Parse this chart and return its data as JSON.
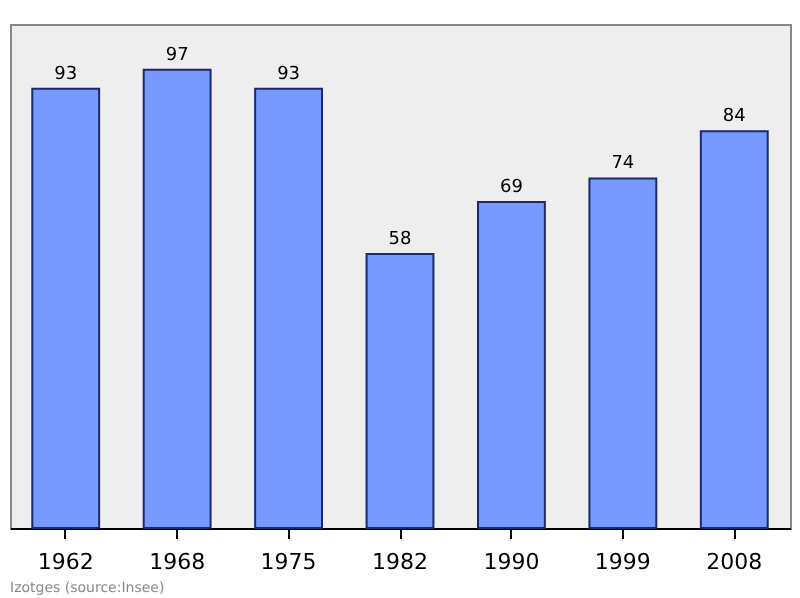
{
  "chart_data": {
    "type": "bar",
    "categories": [
      "1962",
      "1968",
      "1975",
      "1982",
      "1990",
      "1999",
      "2008"
    ],
    "values": [
      93,
      97,
      93,
      58,
      69,
      74,
      84
    ],
    "color": "#7799ff",
    "data_labels": true,
    "grid": false,
    "annotations": [
      "Izotges    (source:Insee)"
    ]
  }
}
